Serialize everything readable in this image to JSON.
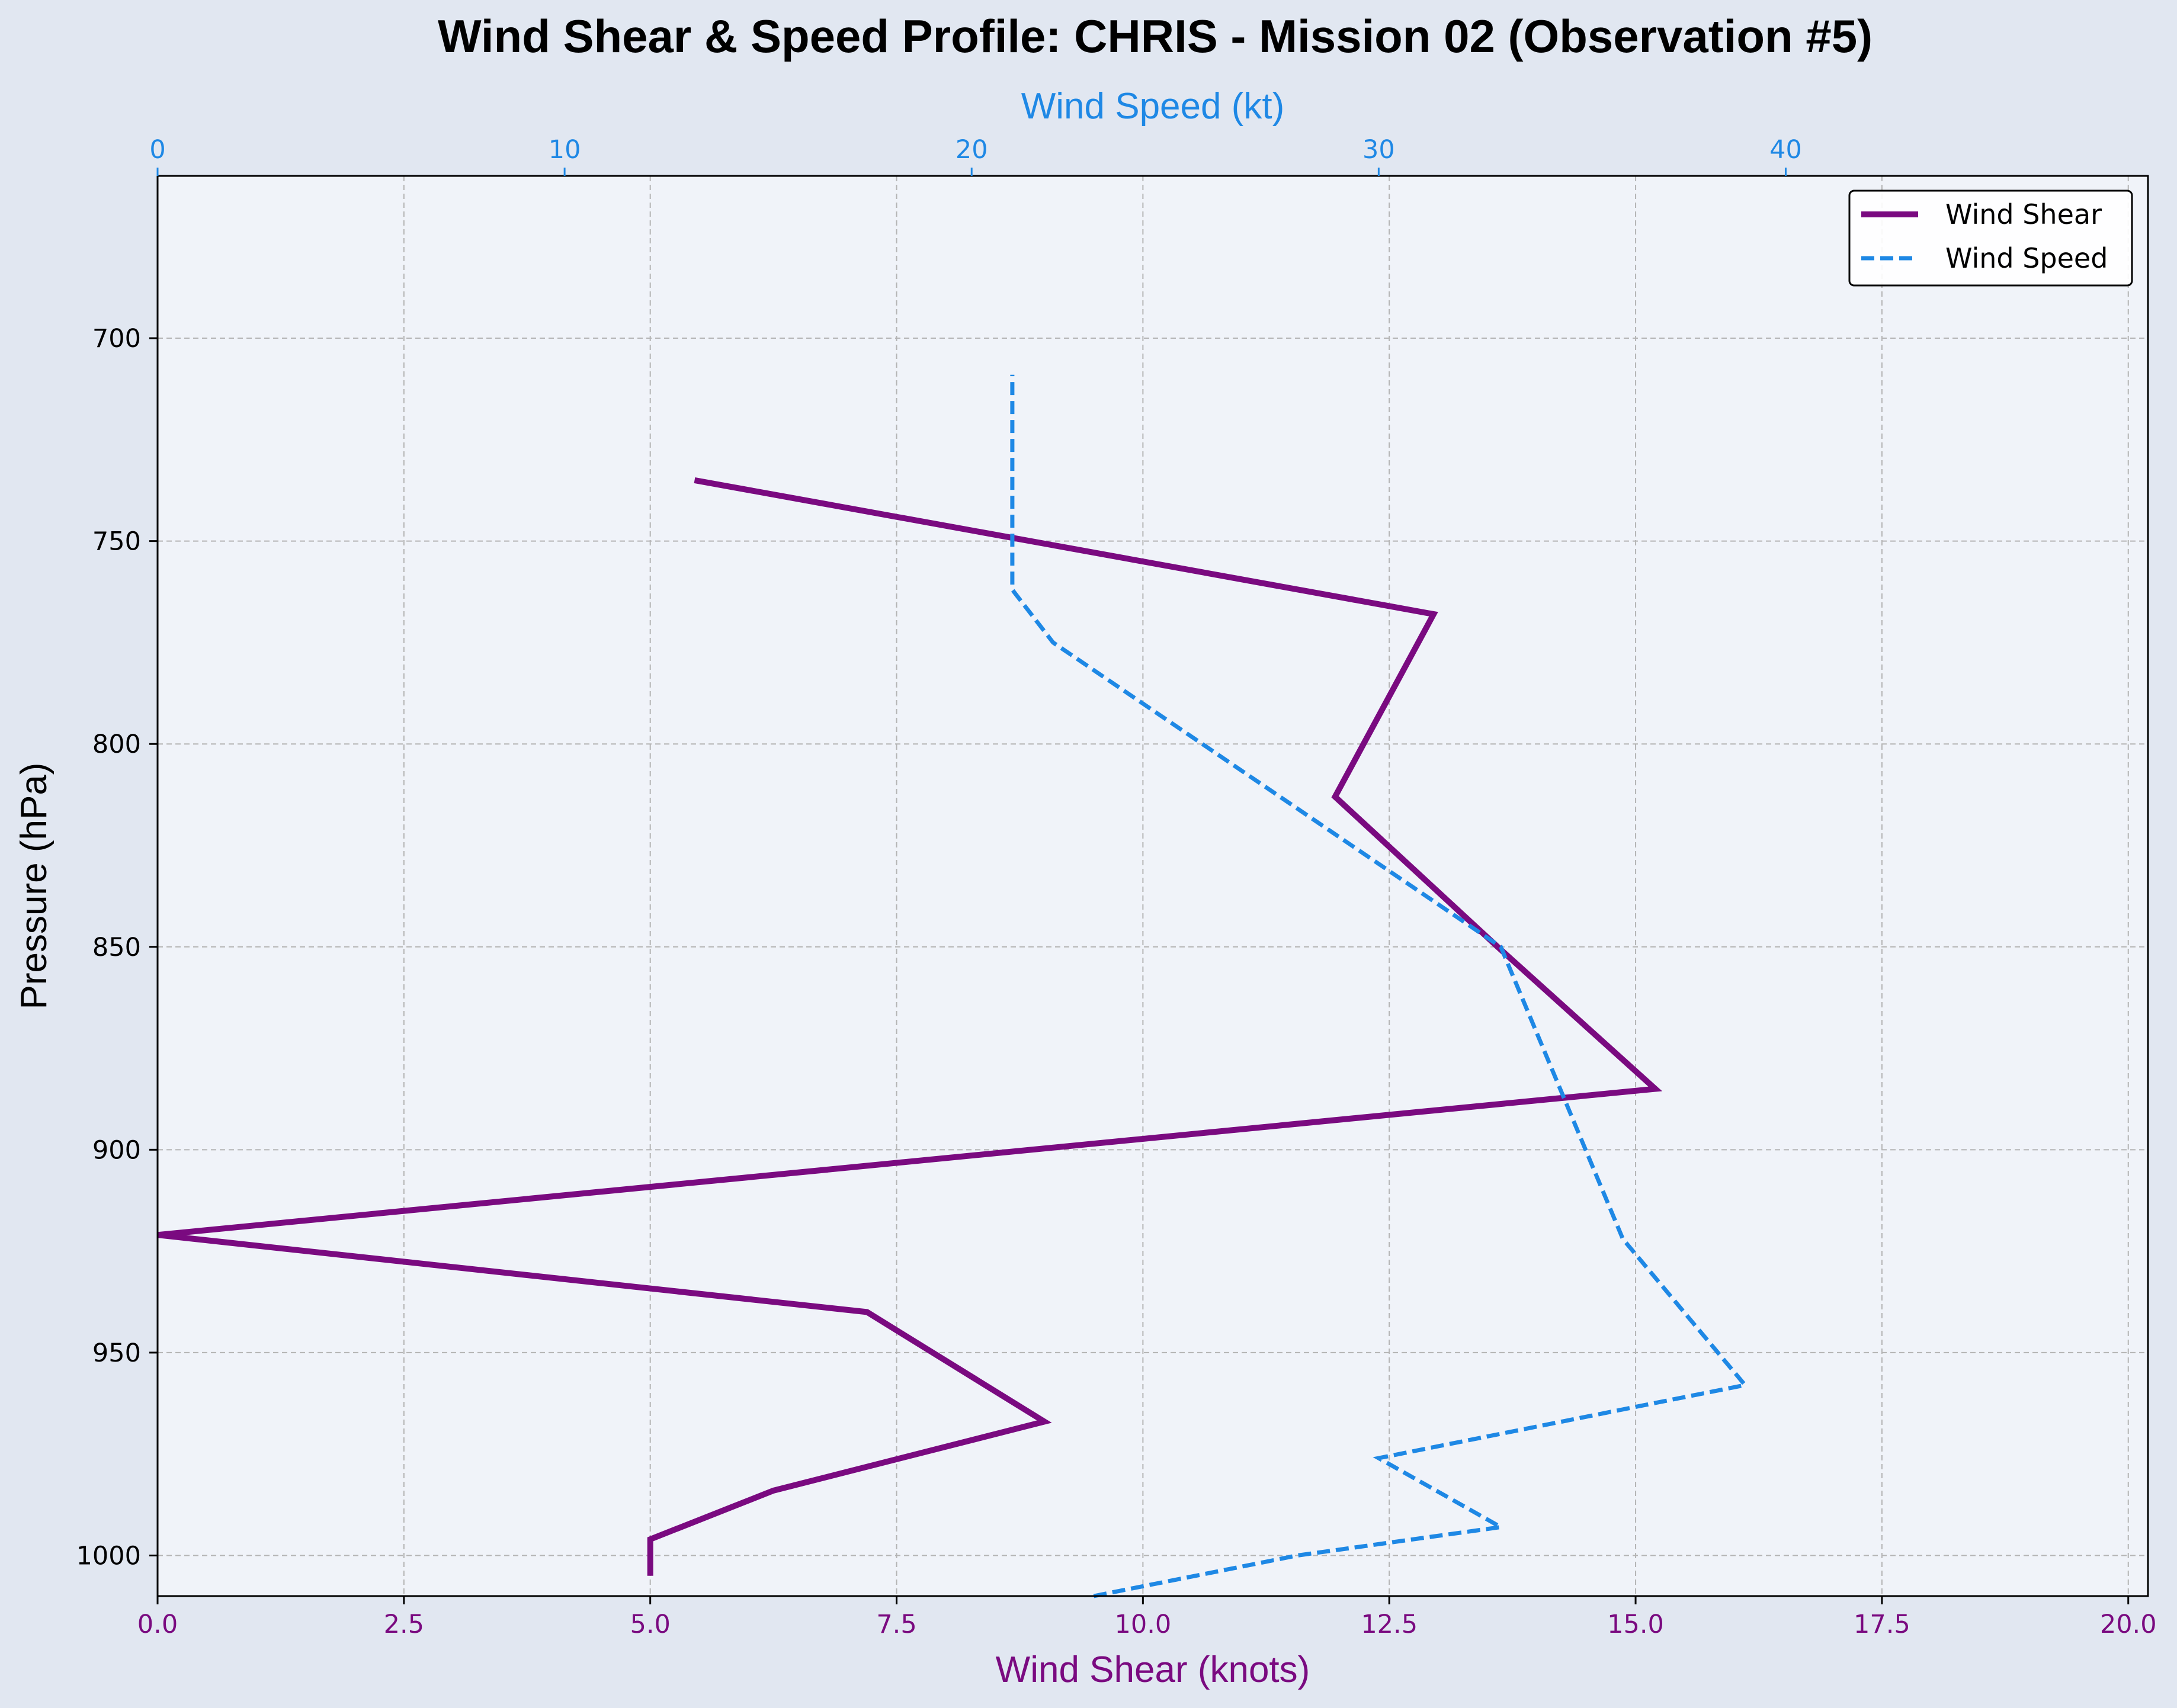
{
  "chart_data": {
    "type": "line",
    "title": "Wind Shear & Speed Profile: CHRIS - Mission 02 (Observation #5)",
    "xlabel": "Wind Shear (knots)",
    "x2label": "Wind Speed (kt)",
    "ylabel": "Pressure (hPa)",
    "xlim": [
      0,
      20.2
    ],
    "x2lim": [
      0,
      48.9
    ],
    "ylim": [
      1010,
      660
    ],
    "y_inverted": true,
    "grid": true,
    "legend_position": "top-right",
    "x_ticks": [
      "0.0",
      "2.5",
      "5.0",
      "7.5",
      "10.0",
      "12.5",
      "15.0",
      "17.5",
      "20.0"
    ],
    "x2_ticks": [
      "0",
      "10",
      "20",
      "30",
      "40"
    ],
    "y_ticks": [
      "700",
      "750",
      "800",
      "850",
      "900",
      "950",
      "1000"
    ],
    "colors": {
      "shear": "#7a0a80",
      "speed": "#1e88e5",
      "shear_axis": "#7a0a80",
      "speed_axis": "#1e88e5",
      "plot_bg": "#f0f3f9",
      "figure_bg": "#e1e7f1",
      "grid": "#b4b4b4"
    },
    "series": [
      {
        "name": "Wind Shear",
        "axis": "bottom",
        "style": "solid",
        "points": [
          {
            "x": 5.0,
            "p": 1005
          },
          {
            "x": 5.0,
            "p": 996
          },
          {
            "x": 6.25,
            "p": 984
          },
          {
            "x": 9.0,
            "p": 967
          },
          {
            "x": 7.2,
            "p": 940
          },
          {
            "x": 0.0,
            "p": 921
          },
          {
            "x": 15.2,
            "p": 885
          },
          {
            "x": 13.6,
            "p": 850
          },
          {
            "x": 11.95,
            "p": 813
          },
          {
            "x": 12.95,
            "p": 768
          },
          {
            "x": 5.45,
            "p": 735
          }
        ]
      },
      {
        "name": "Wind Speed",
        "axis": "top",
        "style": "dashed",
        "points": [
          {
            "x": 23.0,
            "p": 1010
          },
          {
            "x": 28.0,
            "p": 1000
          },
          {
            "x": 33.0,
            "p": 993
          },
          {
            "x": 30.0,
            "p": 976
          },
          {
            "x": 39.0,
            "p": 958
          },
          {
            "x": 36.0,
            "p": 922
          },
          {
            "x": 33.0,
            "p": 850
          },
          {
            "x": 22.0,
            "p": 775
          },
          {
            "x": 21.0,
            "p": 762
          },
          {
            "x": 21.0,
            "p": 709
          }
        ]
      }
    ]
  }
}
